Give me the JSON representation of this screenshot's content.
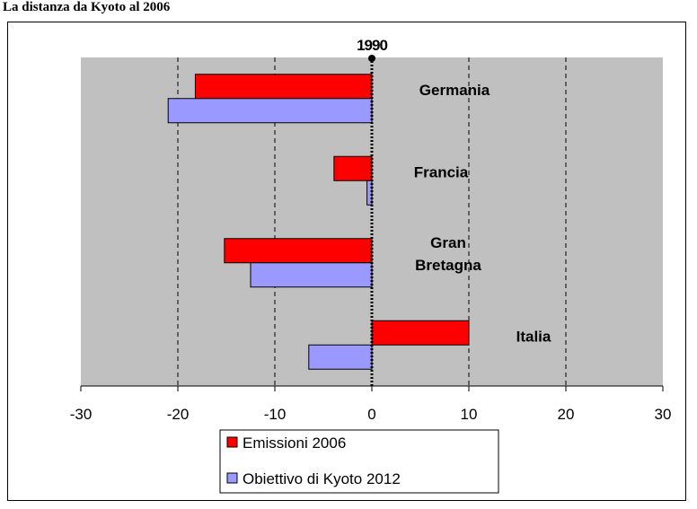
{
  "page_title": "La distanza da Kyoto al 2006",
  "chart_data": {
    "type": "bar",
    "orientation": "horizontal",
    "categories": [
      {
        "lines": [
          "Germania"
        ]
      },
      {
        "lines": [
          "Francia"
        ]
      },
      {
        "lines": [
          "Gran",
          "Bretagna"
        ]
      },
      {
        "lines": [
          "Italia"
        ]
      }
    ],
    "series": [
      {
        "name": "Emissioni 2006",
        "color": "#ff0000",
        "values": [
          -18.2,
          -3.9,
          -15.2,
          10.0
        ]
      },
      {
        "name": "Obiettivo di Kyoto 2012",
        "color": "#9999ff",
        "values": [
          -21.0,
          -0.5,
          -12.5,
          -6.5
        ]
      }
    ],
    "xlim": [
      -30,
      30
    ],
    "xticks": [
      -30,
      -20,
      -10,
      0,
      10,
      20,
      30
    ],
    "gridlines": "dashed vertical",
    "plot_background": "#c0c0c0",
    "reference_line": {
      "value": 0,
      "label": "1990"
    },
    "legend_position": "bottom"
  }
}
